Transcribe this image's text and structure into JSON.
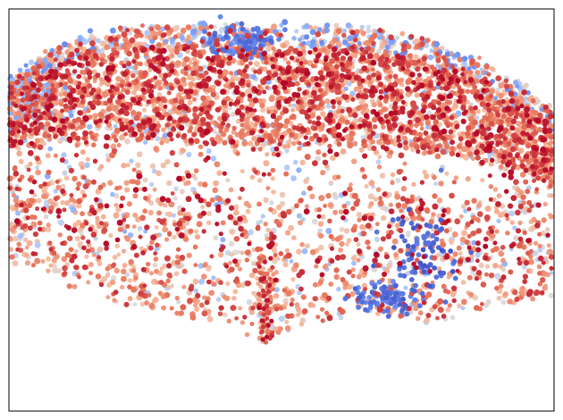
{
  "chart_data": {
    "type": "scatter",
    "title": "",
    "xlabel": "",
    "ylabel": "",
    "xticks": [],
    "yticks": [],
    "xlim": [
      0,
      1
    ],
    "ylim": [
      0,
      1
    ],
    "grid": false,
    "legend": "none",
    "colormap": "coolwarm",
    "colormap_stops": [
      "#3b4cc0",
      "#6f92f3",
      "#aac7fd",
      "#dddddd",
      "#f7b89c",
      "#e7745b",
      "#b40426"
    ],
    "marker": "circle",
    "point_count_estimate": 6000,
    "cloud": {
      "x_range": [
        0.0,
        1.0
      ],
      "apex": {
        "x": 0.47,
        "y": 0.17
      },
      "upper_envelope": [
        [
          0.0,
          0.82
        ],
        [
          0.05,
          0.87
        ],
        [
          0.1,
          0.91
        ],
        [
          0.2,
          0.95
        ],
        [
          0.35,
          0.96
        ],
        [
          0.5,
          0.96
        ],
        [
          0.65,
          0.95
        ],
        [
          0.75,
          0.93
        ],
        [
          0.85,
          0.88
        ],
        [
          0.93,
          0.82
        ],
        [
          1.0,
          0.74
        ]
      ],
      "lower_envelope": [
        [
          0.0,
          0.38
        ],
        [
          0.1,
          0.32
        ],
        [
          0.2,
          0.27
        ],
        [
          0.3,
          0.24
        ],
        [
          0.4,
          0.22
        ],
        [
          0.47,
          0.17
        ],
        [
          0.55,
          0.22
        ],
        [
          0.65,
          0.24
        ],
        [
          0.75,
          0.22
        ],
        [
          0.85,
          0.25
        ],
        [
          1.0,
          0.29
        ]
      ]
    },
    "clusters": [
      {
        "cx": 0.76,
        "cy": 0.4,
        "sx": 0.03,
        "sy": 0.05,
        "color_value": 0.02
      },
      {
        "cx": 0.69,
        "cy": 0.28,
        "sx": 0.03,
        "sy": 0.02,
        "color_value": 0.04
      },
      {
        "cx": 0.43,
        "cy": 0.92,
        "sx": 0.03,
        "sy": 0.02,
        "color_value": 0.06
      },
      {
        "cx": 0.04,
        "cy": 0.77,
        "sx": 0.03,
        "sy": 0.04,
        "color_value": 0.2
      }
    ]
  }
}
